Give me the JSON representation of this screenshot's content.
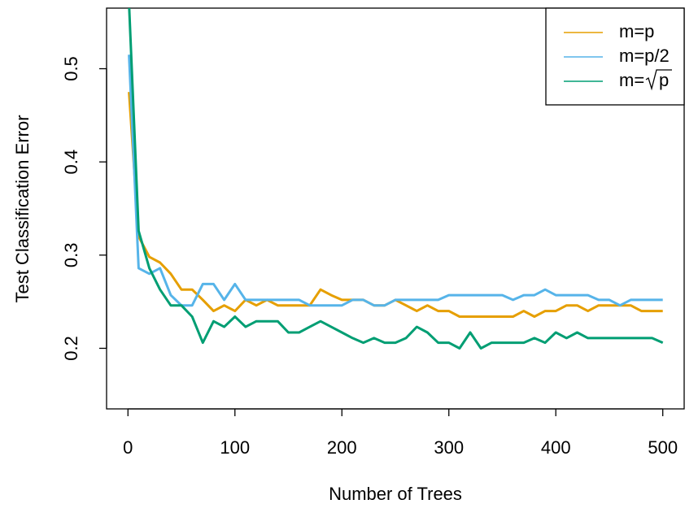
{
  "chart_data": {
    "type": "line",
    "title": "",
    "xlabel": "Number of Trees",
    "ylabel": "Test Classification Error",
    "xlim": [
      -20,
      520
    ],
    "ylim": [
      0.135,
      0.565
    ],
    "x_ticks": [
      0,
      100,
      200,
      300,
      400,
      500
    ],
    "x_tick_labels": [
      "0",
      "100",
      "200",
      "300",
      "400",
      "500"
    ],
    "y_ticks": [
      0.2,
      0.3,
      0.4,
      0.5
    ],
    "y_tick_labels": [
      "0.2",
      "0.3",
      "0.4",
      "0.5"
    ],
    "grid": false,
    "legend_position": "top-right",
    "legend_labels": {
      "m_p_prefix": "m=p",
      "m_p2_prefix": "m=p/2",
      "m_sqrt_prefix": "m=",
      "m_sqrt_radicand": "p"
    },
    "x": [
      1,
      10,
      20,
      30,
      40,
      50,
      60,
      70,
      80,
      90,
      100,
      110,
      120,
      130,
      140,
      150,
      160,
      170,
      180,
      190,
      200,
      210,
      220,
      230,
      240,
      250,
      260,
      270,
      280,
      290,
      300,
      310,
      320,
      330,
      340,
      350,
      360,
      370,
      380,
      390,
      400,
      410,
      420,
      430,
      440,
      450,
      460,
      470,
      480,
      490,
      500
    ],
    "series": [
      {
        "name": "m=p",
        "color": "#E69F00",
        "values": [
          0.475,
          0.32,
          0.298,
          0.292,
          0.28,
          0.263,
          0.263,
          0.252,
          0.24,
          0.246,
          0.24,
          0.252,
          0.246,
          0.252,
          0.246,
          0.246,
          0.246,
          0.246,
          0.263,
          0.257,
          0.252,
          0.252,
          0.252,
          0.246,
          0.246,
          0.252,
          0.246,
          0.24,
          0.246,
          0.24,
          0.24,
          0.234,
          0.234,
          0.234,
          0.234,
          0.234,
          0.234,
          0.24,
          0.234,
          0.24,
          0.24,
          0.246,
          0.246,
          0.24,
          0.246,
          0.246,
          0.246,
          0.246,
          0.24,
          0.24,
          0.24
        ]
      },
      {
        "name": "m=p/2",
        "color": "#56B4E9",
        "values": [
          0.515,
          0.286,
          0.28,
          0.286,
          0.257,
          0.246,
          0.246,
          0.269,
          0.269,
          0.252,
          0.269,
          0.252,
          0.252,
          0.252,
          0.252,
          0.252,
          0.252,
          0.246,
          0.246,
          0.246,
          0.246,
          0.252,
          0.252,
          0.246,
          0.246,
          0.252,
          0.252,
          0.252,
          0.252,
          0.252,
          0.257,
          0.257,
          0.257,
          0.257,
          0.257,
          0.257,
          0.252,
          0.257,
          0.257,
          0.263,
          0.257,
          0.257,
          0.257,
          0.257,
          0.252,
          0.252,
          0.246,
          0.252,
          0.252,
          0.252,
          0.252
        ]
      },
      {
        "name": "m=sqrt(p)",
        "color": "#009E73",
        "values": [
          0.57,
          0.326,
          0.286,
          0.263,
          0.246,
          0.246,
          0.234,
          0.206,
          0.229,
          0.223,
          0.234,
          0.223,
          0.229,
          0.229,
          0.229,
          0.217,
          0.217,
          0.223,
          0.229,
          0.223,
          0.217,
          0.211,
          0.206,
          0.211,
          0.206,
          0.206,
          0.211,
          0.223,
          0.217,
          0.206,
          0.206,
          0.2,
          0.217,
          0.2,
          0.206,
          0.206,
          0.206,
          0.206,
          0.211,
          0.206,
          0.217,
          0.211,
          0.217,
          0.211,
          0.211,
          0.211,
          0.211,
          0.211,
          0.211,
          0.211,
          0.206
        ]
      }
    ]
  }
}
